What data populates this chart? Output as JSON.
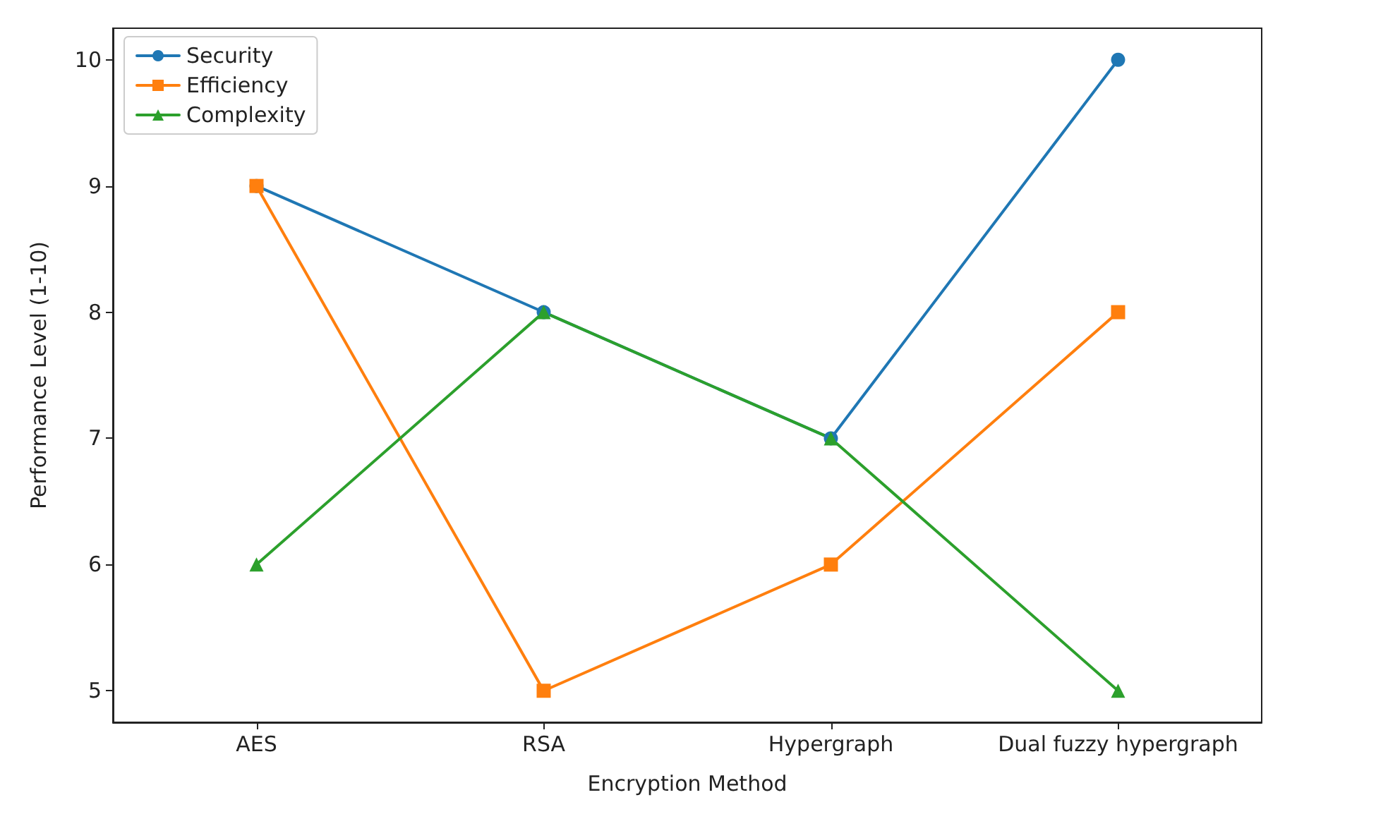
{
  "chart_data": {
    "type": "line",
    "xlabel": "Encryption Method",
    "ylabel": "Performance Level (1-10)",
    "categories": [
      "AES",
      "RSA",
      "Hypergraph",
      "Dual fuzzy hypergraph"
    ],
    "series": [
      {
        "name": "Security",
        "color": "#1f77b4",
        "marker": "circle",
        "values": [
          9,
          8,
          7,
          10
        ]
      },
      {
        "name": "Efficiency",
        "color": "#ff7f0e",
        "marker": "square",
        "values": [
          9,
          5,
          6,
          8
        ]
      },
      {
        "name": "Complexity",
        "color": "#2ca02c",
        "marker": "triangle",
        "values": [
          6,
          8,
          7,
          5
        ]
      }
    ],
    "ylim": [
      4.75,
      10.25
    ],
    "yticks": [
      5,
      6,
      7,
      8,
      9,
      10
    ],
    "grid": false,
    "legend": "top left"
  }
}
